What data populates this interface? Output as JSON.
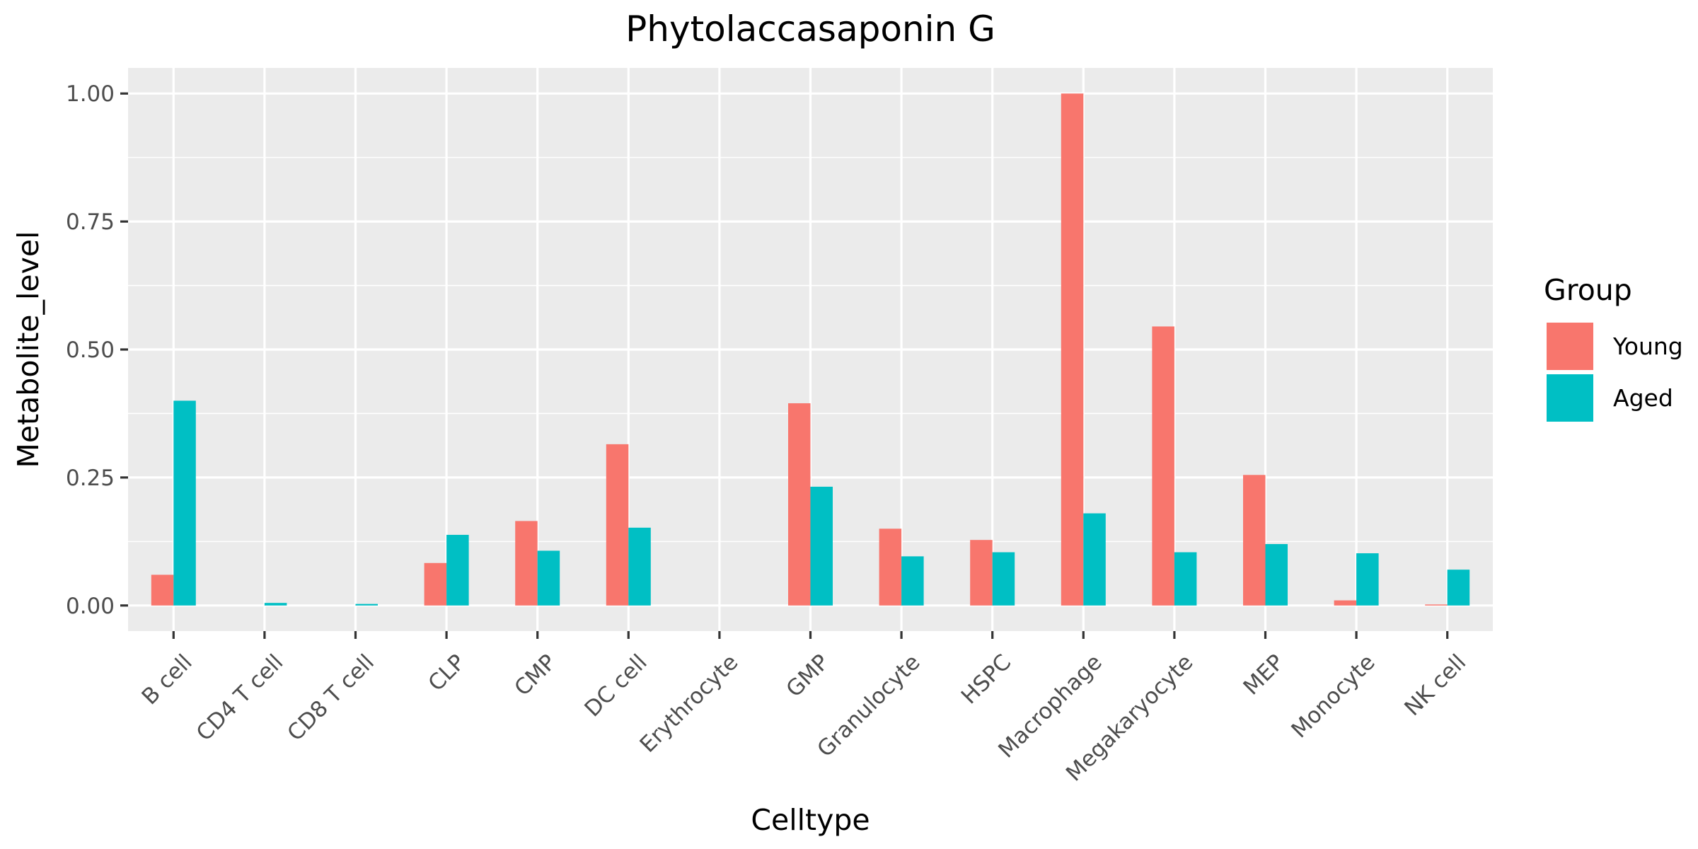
{
  "chart_data": {
    "type": "bar",
    "title": "Phytolaccasaponin G",
    "xlabel": "Celltype",
    "ylabel": "Metabolite_level",
    "ylim": [
      -0.05,
      1.05
    ],
    "yticks": [
      0.0,
      0.25,
      0.5,
      0.75,
      1.0
    ],
    "ytick_labels": [
      "0.00",
      "0.25",
      "0.50",
      "0.75",
      "1.00"
    ],
    "grid": true,
    "legend": {
      "title": "Group",
      "placement": "right"
    },
    "categories": [
      "B cell",
      "CD4 T cell",
      "CD8 T cell",
      "CLP",
      "CMP",
      "DC cell",
      "Erythrocyte",
      "GMP",
      "Granulocyte",
      "HSPC",
      "Macrophage",
      "Megakaryocyte",
      "MEP",
      "Monocyte",
      "NK cell"
    ],
    "series": [
      {
        "name": "Young",
        "color": "#F8766D",
        "values": [
          0.06,
          0.0,
          0.0,
          0.083,
          0.165,
          0.315,
          0.0,
          0.395,
          0.15,
          0.128,
          1.0,
          0.545,
          0.255,
          0.01,
          0.002
        ]
      },
      {
        "name": "Aged",
        "color": "#00BFC4",
        "values": [
          0.4,
          0.005,
          0.003,
          0.138,
          0.107,
          0.152,
          0.0,
          0.232,
          0.096,
          0.104,
          0.18,
          0.104,
          0.12,
          0.102,
          0.07
        ]
      }
    ]
  },
  "style": {
    "panel_bg": "#EBEBEB",
    "grid_major": "#FFFFFF",
    "axis_tick_color": "#333333"
  }
}
